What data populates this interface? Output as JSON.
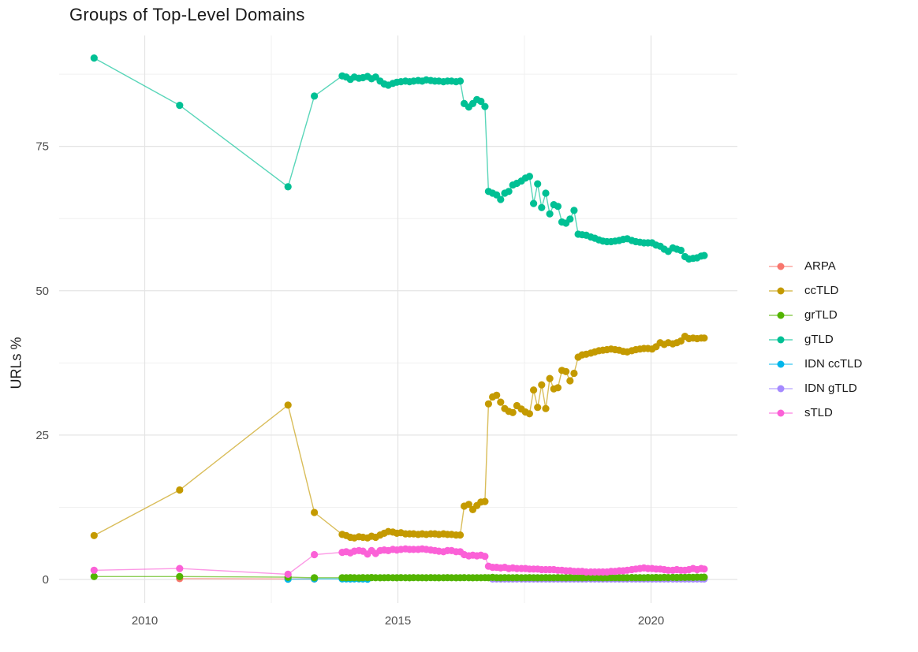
{
  "chart_data": {
    "type": "line",
    "title": "Groups of Top-Level Domains",
    "xlabel": "",
    "ylabel": "URLs %",
    "xlim": [
      2008.3,
      2021.7
    ],
    "ylim": [
      -4,
      94
    ],
    "x_ticks": [
      2010,
      2015,
      2020
    ],
    "x_minor_gridlines": [
      2012.5,
      2017.5
    ],
    "y_ticks": [
      0,
      25,
      50,
      75
    ],
    "y_minor_gridlines": [
      12.5,
      37.5,
      62.5,
      87.5
    ],
    "grid": "on",
    "legend_position": "right",
    "marker": "circle",
    "early_x": [
      2009.0,
      2010.69,
      2012.83,
      2013.35
    ],
    "monthly_x": [
      2013.9,
      2013.98,
      2014.06,
      2014.14,
      2014.23,
      2014.31,
      2014.4,
      2014.48,
      2014.56,
      2014.65,
      2014.73,
      2014.81,
      2014.9,
      2014.98,
      2015.06,
      2015.15,
      2015.23,
      2015.31,
      2015.4,
      2015.48,
      2015.56,
      2015.65,
      2015.73,
      2015.81,
      2015.9,
      2015.98,
      2016.06,
      2016.15,
      2016.23,
      2016.31,
      2016.4,
      2016.48,
      2016.56,
      2016.64,
      2016.72,
      2016.79,
      2016.87,
      2016.95,
      2017.03,
      2017.11,
      2017.19,
      2017.27,
      2017.35,
      2017.44,
      2017.52,
      2017.6,
      2017.68,
      2017.76,
      2017.84,
      2017.92,
      2018.0,
      2018.08,
      2018.16,
      2018.24,
      2018.32,
      2018.4,
      2018.48,
      2018.56,
      2018.64,
      2018.72,
      2018.81,
      2018.89,
      2018.97,
      2019.05,
      2019.13,
      2019.21,
      2019.29,
      2019.37,
      2019.45,
      2019.53,
      2019.62,
      2019.7,
      2019.78,
      2019.86,
      2019.94,
      2020.02,
      2020.1,
      2020.18,
      2020.26,
      2020.34,
      2020.43,
      2020.51,
      2020.59,
      2020.67,
      2020.75,
      2020.83,
      2020.91,
      2020.99,
      2021.05
    ],
    "draw_order": [
      "ARPA",
      "IDN ccTLD",
      "IDN gTLD",
      "grTLD",
      "sTLD",
      "ccTLD",
      "gTLD"
    ],
    "series": [
      {
        "name": "ARPA",
        "color": "#F8766D",
        "points": [
          [
            2010.69,
            0.15
          ],
          [
            2012.83,
            0.1
          ],
          [
            2013.35,
            0.08
          ]
        ]
      },
      {
        "name": "ccTLD",
        "color": "#C49A00",
        "early": [
          7.6,
          15.5,
          30.2,
          11.6
        ],
        "monthly": [
          7.8,
          7.6,
          7.3,
          7.2,
          7.4,
          7.3,
          7.2,
          7.5,
          7.3,
          7.7,
          8.0,
          8.3,
          8.2,
          8.0,
          8.1,
          7.9,
          7.9,
          7.9,
          7.8,
          7.9,
          7.8,
          7.9,
          7.9,
          7.8,
          7.9,
          7.8,
          7.8,
          7.7,
          7.7,
          12.7,
          13.0,
          12.1,
          12.8,
          13.4,
          13.5,
          30.4,
          31.6,
          31.9,
          30.7,
          29.6,
          29.1,
          28.9,
          30.1,
          29.5,
          29.0,
          28.7,
          32.8,
          29.8,
          33.7,
          29.6,
          34.8,
          33.0,
          33.2,
          36.2,
          36.0,
          34.4,
          35.7,
          38.5,
          38.9,
          39.0,
          39.2,
          39.4,
          39.6,
          39.7,
          39.8,
          39.9,
          39.8,
          39.7,
          39.5,
          39.4,
          39.6,
          39.8,
          39.9,
          40.0,
          40.0,
          39.9,
          40.3,
          41.0,
          40.7,
          41.0,
          40.8,
          41.0,
          41.3,
          42.1,
          41.7,
          41.8,
          41.7,
          41.8,
          41.8
        ]
      },
      {
        "name": "grTLD",
        "color": "#53B400",
        "early": [
          0.5,
          0.5,
          0.4,
          0.3
        ],
        "monthly": [
          0.3,
          0.28,
          0.32,
          0.3,
          0.27,
          0.31,
          0.3,
          0.33,
          0.3,
          0.28,
          0.3,
          0.32,
          0.3,
          0.29,
          0.31,
          0.3,
          0.28,
          0.32,
          0.3,
          0.3,
          0.29,
          0.31,
          0.3,
          0.28,
          0.3,
          0.32,
          0.3,
          0.29,
          0.3,
          0.31,
          0.3,
          0.28,
          0.3,
          0.3,
          0.32,
          0.3,
          0.35,
          0.3,
          0.28,
          0.32,
          0.3,
          0.3,
          0.31,
          0.29,
          0.3,
          0.32,
          0.3,
          0.28,
          0.3,
          0.31,
          0.3,
          0.3,
          0.32,
          0.3,
          0.29,
          0.31,
          0.3,
          0.3,
          0.28,
          0.32,
          0.3,
          0.31,
          0.3,
          0.29,
          0.3,
          0.32,
          0.31,
          0.3,
          0.32,
          0.3,
          0.33,
          0.31,
          0.32,
          0.3,
          0.33,
          0.32,
          0.34,
          0.32,
          0.35,
          0.33,
          0.35,
          0.34,
          0.36,
          0.35,
          0.38,
          0.36,
          0.4,
          0.38,
          0.4
        ]
      },
      {
        "name": "gTLD",
        "color": "#00C094",
        "early": [
          90.3,
          82.1,
          68.0,
          83.7
        ],
        "monthly": [
          87.2,
          87.0,
          86.6,
          87.0,
          86.8,
          86.9,
          87.1,
          86.7,
          87.0,
          86.3,
          85.8,
          85.6,
          85.9,
          86.1,
          86.2,
          86.3,
          86.2,
          86.3,
          86.4,
          86.3,
          86.5,
          86.4,
          86.3,
          86.3,
          86.2,
          86.3,
          86.3,
          86.2,
          86.3,
          82.4,
          81.8,
          82.4,
          83.1,
          82.8,
          81.9,
          67.2,
          66.9,
          66.6,
          65.8,
          66.9,
          67.2,
          68.3,
          68.6,
          69.0,
          69.5,
          69.8,
          65.1,
          68.5,
          64.4,
          66.9,
          63.3,
          64.9,
          64.6,
          61.9,
          61.7,
          62.4,
          63.9,
          59.8,
          59.7,
          59.6,
          59.3,
          59.1,
          58.8,
          58.6,
          58.5,
          58.5,
          58.6,
          58.7,
          58.9,
          59.0,
          58.7,
          58.5,
          58.4,
          58.3,
          58.3,
          58.3,
          57.9,
          57.7,
          57.2,
          56.8,
          57.4,
          57.2,
          57.0,
          55.9,
          55.5,
          55.6,
          55.7,
          56.0,
          56.1
        ]
      },
      {
        "name": "IDN ccTLD",
        "color": "#00B6EB",
        "points": [
          [
            2012.83,
            0.06
          ],
          [
            2013.35,
            0.1
          ],
          [
            2013.9,
            0.1
          ],
          [
            2013.98,
            0.09
          ],
          [
            2014.06,
            0.08
          ],
          [
            2014.14,
            0.1
          ],
          [
            2014.23,
            0.09
          ],
          [
            2014.31,
            0.08
          ],
          [
            2014.4,
            0.06
          ]
        ]
      },
      {
        "name": "IDN gTLD",
        "color": "#A58AFF",
        "monthly_start_index": 36,
        "monthly": [
          0.08,
          0.08,
          0.08,
          0.08,
          0.08,
          0.08,
          0.08,
          0.08,
          0.08,
          0.08,
          0.08,
          0.08,
          0.08,
          0.08,
          0.08,
          0.08,
          0.08,
          0.08,
          0.08,
          0.08,
          0.08,
          0.08,
          0.08,
          0.08,
          0.08,
          0.08,
          0.08,
          0.08,
          0.08,
          0.08,
          0.08,
          0.08,
          0.08,
          0.08,
          0.08,
          0.08,
          0.08,
          0.08,
          0.08,
          0.08,
          0.08,
          0.08,
          0.08,
          0.08,
          0.08,
          0.08,
          0.08,
          0.08,
          0.08,
          0.08,
          0.08,
          0.08,
          0.08
        ]
      },
      {
        "name": "sTLD",
        "color": "#FB61D7",
        "early": [
          1.6,
          1.9,
          0.9,
          4.3
        ],
        "monthly": [
          4.7,
          4.8,
          4.6,
          4.9,
          5.0,
          4.9,
          4.4,
          5.0,
          4.5,
          5.0,
          5.1,
          5.0,
          5.2,
          5.1,
          5.2,
          5.3,
          5.2,
          5.2,
          5.2,
          5.3,
          5.2,
          5.1,
          5.0,
          4.9,
          4.8,
          5.0,
          5.0,
          4.8,
          4.8,
          4.3,
          4.1,
          4.2,
          4.1,
          4.2,
          4.0,
          2.3,
          2.1,
          2.1,
          2.0,
          2.1,
          1.9,
          2.0,
          1.9,
          1.9,
          1.9,
          1.8,
          1.8,
          1.8,
          1.7,
          1.7,
          1.7,
          1.7,
          1.6,
          1.6,
          1.5,
          1.5,
          1.4,
          1.4,
          1.4,
          1.3,
          1.3,
          1.3,
          1.3,
          1.3,
          1.3,
          1.4,
          1.4,
          1.5,
          1.5,
          1.6,
          1.7,
          1.8,
          1.9,
          2.0,
          1.9,
          1.9,
          1.8,
          1.8,
          1.7,
          1.6,
          1.6,
          1.7,
          1.6,
          1.6,
          1.7,
          1.9,
          1.7,
          1.9,
          1.8
        ]
      }
    ]
  },
  "legend": {
    "items": [
      {
        "label": "ARPA",
        "color": "#F8766D"
      },
      {
        "label": "ccTLD",
        "color": "#C49A00"
      },
      {
        "label": "grTLD",
        "color": "#53B400"
      },
      {
        "label": "gTLD",
        "color": "#00C094"
      },
      {
        "label": "IDN ccTLD",
        "color": "#00B6EB"
      },
      {
        "label": "IDN gTLD",
        "color": "#A58AFF"
      },
      {
        "label": "sTLD",
        "color": "#FB61D7"
      }
    ]
  },
  "style": {
    "gridline_major_color": "#E4E4E4",
    "gridline_minor_color": "#F0F0F0",
    "tick_label_color": "#4D4D4D",
    "background_color": "#FFFFFF"
  }
}
